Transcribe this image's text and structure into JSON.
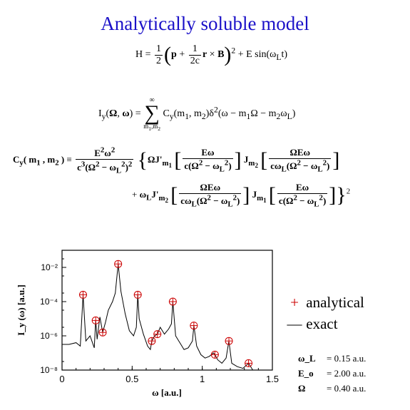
{
  "title": "Analytically soluble model",
  "equations": {
    "hamiltonian": "H = ½ (p + 1/2c r × B)² + E sin(ω_L t)",
    "intensity": "I_y(Ω, ω) = Σ_{m1,m2}^∞ C_y(m1, m2) δ²(ω − m1Ω − m2ω_L)",
    "coefficient_line1": "C_y(m1, m2) ≡ E²ω² / c³(Ω² − ω_L²)² { ΩJ'_{m1}[Eω / c(Ω² − ω_L²)] J_{m2}[ΩEω / cω_L(Ω² − ω_L²)]",
    "coefficient_line2": "+ ω_L J'_{m2}[ΩEω / cω_L(Ω² − ω_L²)] J_{m1}[Eω / c(Ω² − ω_L²)] }²"
  },
  "legend": {
    "analytical_marker": "+",
    "analytical_label": "analytical",
    "exact_marker": "—",
    "exact_label": "exact",
    "marker_color": "#cc0000"
  },
  "params": [
    {
      "symbol": "ω_L",
      "value": "= 0.15 a.u."
    },
    {
      "symbol": "E_o",
      "value": "= 2.00 a.u."
    },
    {
      "symbol": "Ω",
      "value": "= 0.40 a.u."
    }
  ],
  "chart_data": {
    "type": "line",
    "xlabel": "ω [a.u.]",
    "ylabel": "I_y (ω) [a.u.]",
    "xlim": [
      0,
      1.5
    ],
    "ylim_log10": [
      -8,
      -1
    ],
    "yscale": "log",
    "x_ticks": [
      "0",
      "0.5",
      "1",
      "1.5"
    ],
    "y_ticks": [
      "10⁻⁸",
      "10⁻⁶",
      "10⁻⁴",
      "10⁻²"
    ],
    "y_tick_exponents": [
      -8,
      -6,
      -4,
      -2
    ],
    "x_tick_values": [
      0,
      0.5,
      1,
      1.5
    ],
    "series": [
      {
        "name": "analytical",
        "style": "markers",
        "x": [
          0.15,
          0.24,
          0.29,
          0.4,
          0.54,
          0.64,
          0.68,
          0.79,
          0.94,
          1.09,
          1.19,
          1.33
        ],
        "log10_y": [
          -3.6,
          -5.1,
          -5.8,
          -1.8,
          -3.6,
          -6.3,
          -5.9,
          -4.0,
          -5.4,
          -7.1,
          -6.3,
          -7.6
        ]
      },
      {
        "name": "exact",
        "style": "line",
        "x": [
          0.0,
          0.05,
          0.1,
          0.13,
          0.15,
          0.17,
          0.2,
          0.23,
          0.24,
          0.25,
          0.27,
          0.29,
          0.31,
          0.33,
          0.36,
          0.38,
          0.4,
          0.42,
          0.45,
          0.48,
          0.51,
          0.53,
          0.54,
          0.55,
          0.58,
          0.61,
          0.63,
          0.64,
          0.66,
          0.68,
          0.7,
          0.73,
          0.76,
          0.78,
          0.79,
          0.81,
          0.84,
          0.87,
          0.9,
          0.93,
          0.94,
          0.96,
          0.99,
          1.02,
          1.05,
          1.08,
          1.09,
          1.11,
          1.14,
          1.17,
          1.19,
          1.21,
          1.25,
          1.29,
          1.33,
          1.36
        ],
        "log10_y": [
          -6.5,
          -6.5,
          -6.4,
          -6.6,
          -3.6,
          -6.3,
          -6.0,
          -6.7,
          -5.1,
          -6.2,
          -4.9,
          -5.8,
          -5.2,
          -4.5,
          -4.0,
          -3.5,
          -1.8,
          -3.4,
          -4.7,
          -5.7,
          -6.0,
          -5.5,
          -3.6,
          -5.0,
          -5.9,
          -6.6,
          -6.8,
          -6.3,
          -6.0,
          -5.9,
          -5.5,
          -5.9,
          -5.6,
          -5.3,
          -4.0,
          -6.0,
          -6.4,
          -6.8,
          -6.7,
          -6.3,
          -5.4,
          -6.6,
          -7.1,
          -7.3,
          -7.2,
          -7.0,
          -7.1,
          -7.4,
          -7.6,
          -7.3,
          -6.3,
          -7.6,
          -7.8,
          -7.9,
          -7.6,
          -8.0
        ]
      }
    ]
  }
}
